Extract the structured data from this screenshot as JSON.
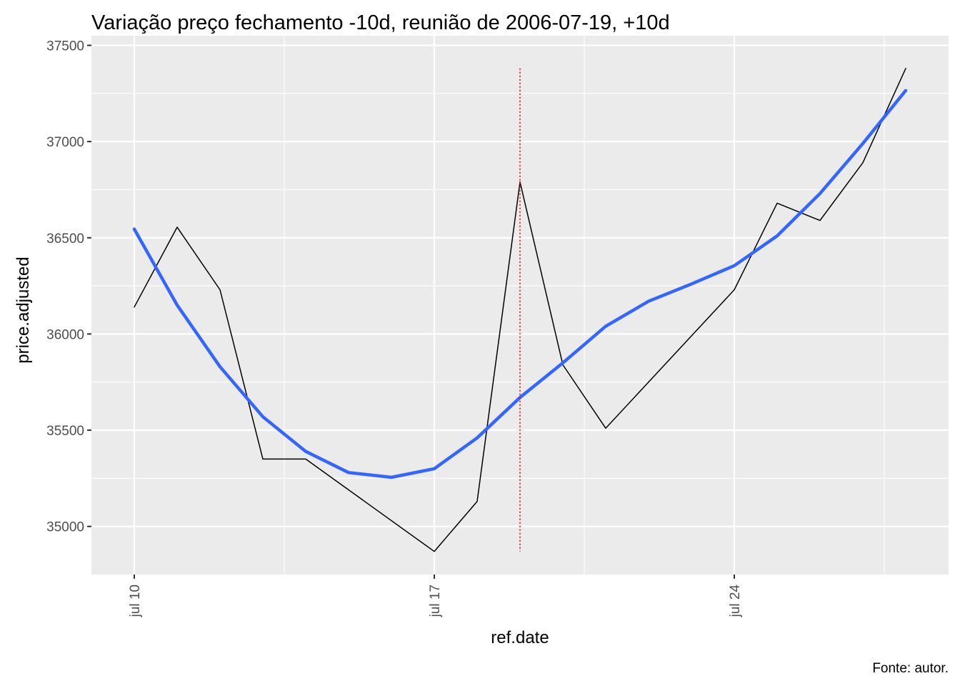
{
  "chart_data": {
    "type": "line",
    "title": "Variação preço fechamento -10d, reunião de 2006-07-19, +10d",
    "xlabel": "ref.date",
    "ylabel": "price.adjusted",
    "caption": "Fonte: autor.",
    "x_ticks": [
      {
        "label": "jul 10",
        "day": 10
      },
      {
        "label": "jul 17",
        "day": 17
      },
      {
        "label": "jul 24",
        "day": 24
      }
    ],
    "y_ticks": [
      35000,
      35500,
      36000,
      36500,
      37000,
      37500
    ],
    "xlim": [
      "2006-07-09",
      "2006-07-29"
    ],
    "ylim": [
      34750,
      37550
    ],
    "grid": true,
    "series": [
      {
        "color": "#000000",
        "x": [
          "2006-07-10",
          "2006-07-11",
          "2006-07-12",
          "2006-07-13",
          "2006-07-14",
          "2006-07-17",
          "2006-07-18",
          "2006-07-19",
          "2006-07-20",
          "2006-07-21",
          "2006-07-24",
          "2006-07-25",
          "2006-07-26",
          "2006-07-27",
          "2006-07-28"
        ],
        "values": [
          36140,
          36555,
          36230,
          35350,
          35350,
          34870,
          35130,
          36790,
          35840,
          35510,
          36230,
          36680,
          36590,
          36890,
          37380
        ]
      },
      {
        "color": "#3366ff",
        "x": [
          "2006-07-10",
          "2006-07-11",
          "2006-07-12",
          "2006-07-13",
          "2006-07-14",
          "2006-07-15",
          "2006-07-16",
          "2006-07-17",
          "2006-07-18",
          "2006-07-19",
          "2006-07-20",
          "2006-07-21",
          "2006-07-22",
          "2006-07-23",
          "2006-07-24",
          "2006-07-25",
          "2006-07-26",
          "2006-07-27",
          "2006-07-28"
        ],
        "values": [
          36545,
          36150,
          35830,
          35570,
          35390,
          35280,
          35255,
          35300,
          35460,
          35670,
          35850,
          36040,
          36170,
          36260,
          36355,
          36510,
          36730,
          36990,
          37265
        ]
      }
    ],
    "event_line": {
      "x": "2006-07-19",
      "y_from": 34870,
      "y_to": 37380,
      "color": "#ff0000",
      "style": "dotted"
    }
  }
}
